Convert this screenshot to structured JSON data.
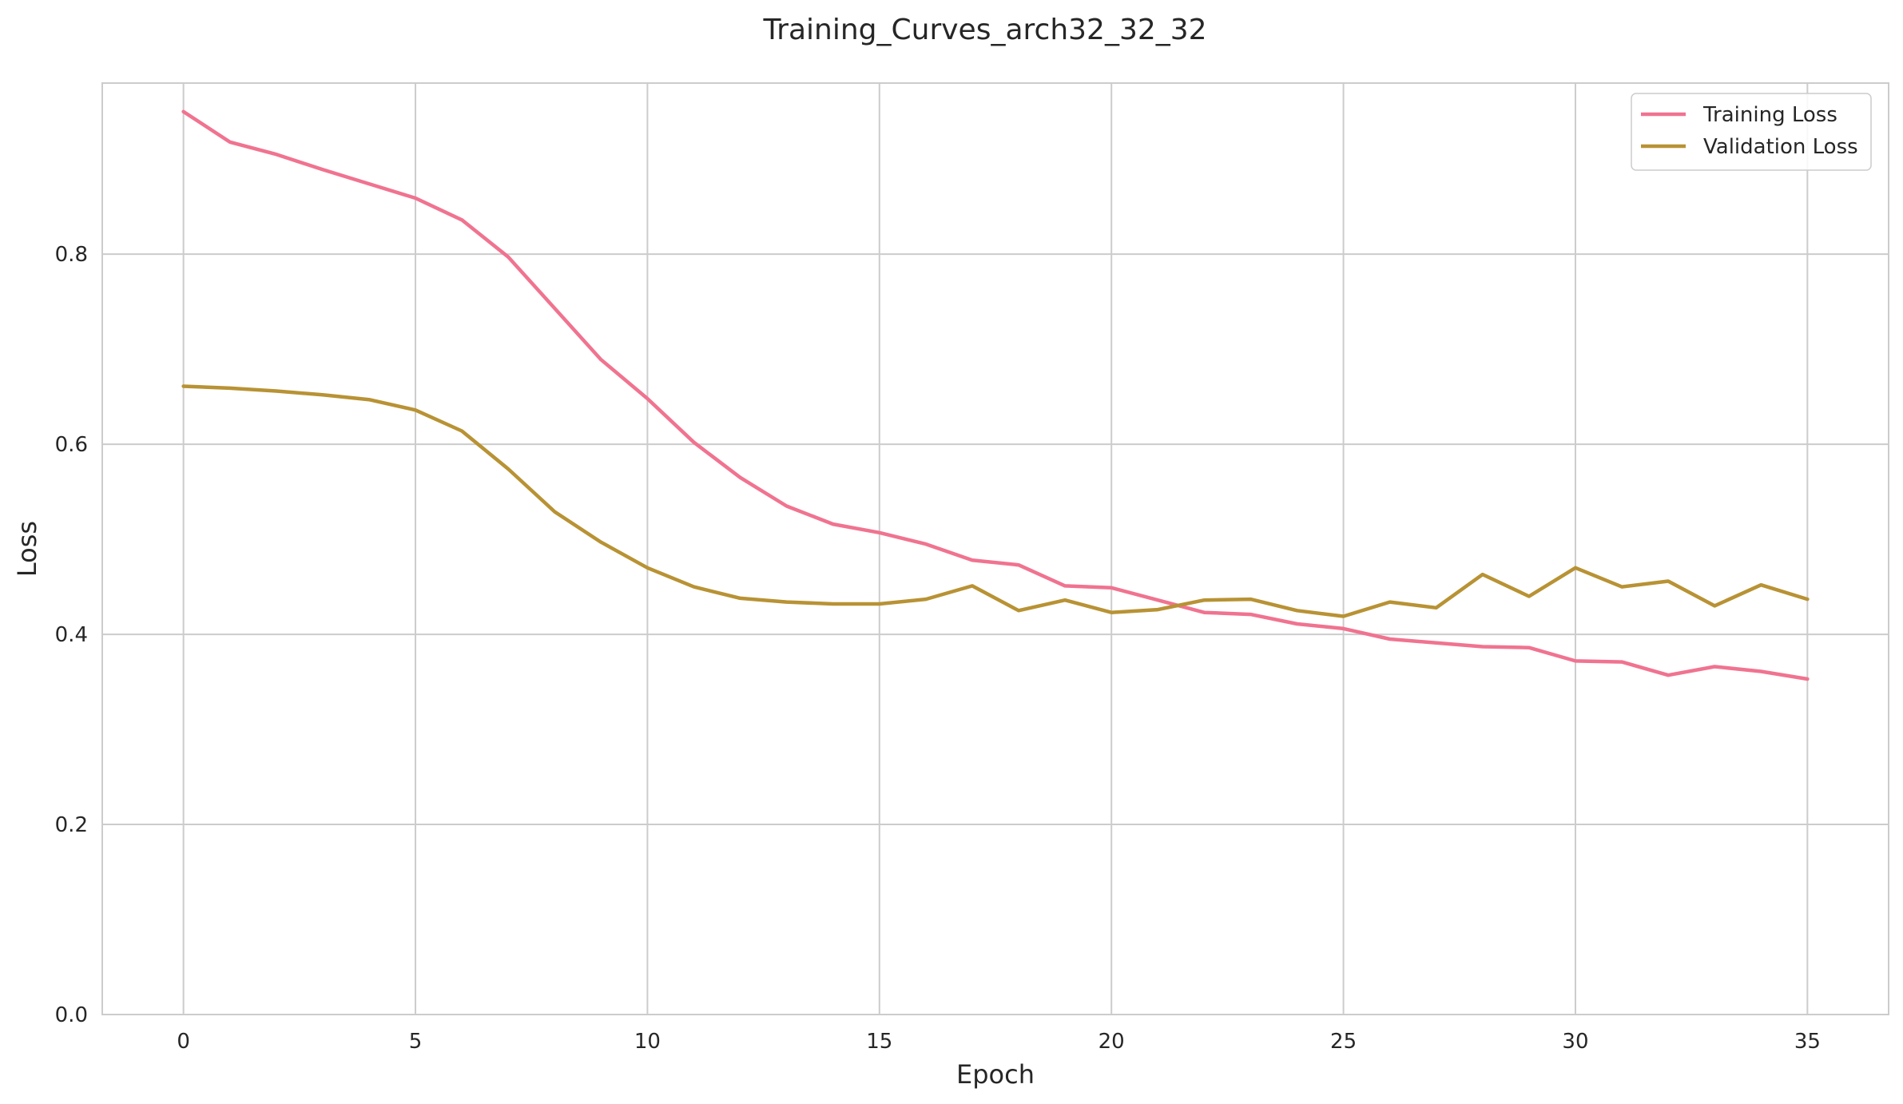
{
  "chart_data": {
    "type": "line",
    "title": "Training_Curves_arch32_32_32",
    "xlabel": "Epoch",
    "ylabel": "Loss",
    "xlim": [
      -1.75,
      36.75
    ],
    "ylim": [
      0,
      0.98
    ],
    "xticks": [
      0,
      5,
      10,
      15,
      20,
      25,
      30,
      35
    ],
    "yticks": [
      0.0,
      0.2,
      0.4,
      0.6,
      0.8
    ],
    "xtick_labels": [
      "0",
      "5",
      "10",
      "15",
      "20",
      "25",
      "30",
      "35"
    ],
    "ytick_labels": [
      "0.0",
      "0.2",
      "0.4",
      "0.6",
      "0.8"
    ],
    "grid": true,
    "legend_position": "top-right",
    "x": [
      0,
      1,
      2,
      3,
      4,
      5,
      6,
      7,
      8,
      9,
      10,
      11,
      12,
      13,
      14,
      15,
      16,
      17,
      18,
      19,
      20,
      21,
      22,
      23,
      24,
      25,
      26,
      27,
      28,
      29,
      30,
      31,
      32,
      33,
      34,
      35
    ],
    "series": [
      {
        "name": "Training Loss",
        "color": "#f07390",
        "values": [
          0.95,
          0.918,
          0.905,
          0.889,
          0.874,
          0.859,
          0.836,
          0.797,
          0.743,
          0.689,
          0.648,
          0.602,
          0.565,
          0.535,
          0.516,
          0.507,
          0.495,
          0.478,
          0.473,
          0.451,
          0.449,
          0.436,
          0.423,
          0.421,
          0.411,
          0.406,
          0.395,
          0.391,
          0.387,
          0.386,
          0.372,
          0.371,
          0.357,
          0.366,
          0.361,
          0.353
        ]
      },
      {
        "name": "Validation Loss",
        "color": "#b89234",
        "values": [
          0.661,
          0.659,
          0.656,
          0.652,
          0.647,
          0.636,
          0.614,
          0.574,
          0.529,
          0.497,
          0.47,
          0.45,
          0.438,
          0.434,
          0.432,
          0.432,
          0.437,
          0.451,
          0.425,
          0.436,
          0.423,
          0.426,
          0.436,
          0.437,
          0.425,
          0.419,
          0.434,
          0.428,
          0.463,
          0.44,
          0.47,
          0.45,
          0.456,
          0.43,
          0.452,
          0.437
        ]
      }
    ]
  }
}
